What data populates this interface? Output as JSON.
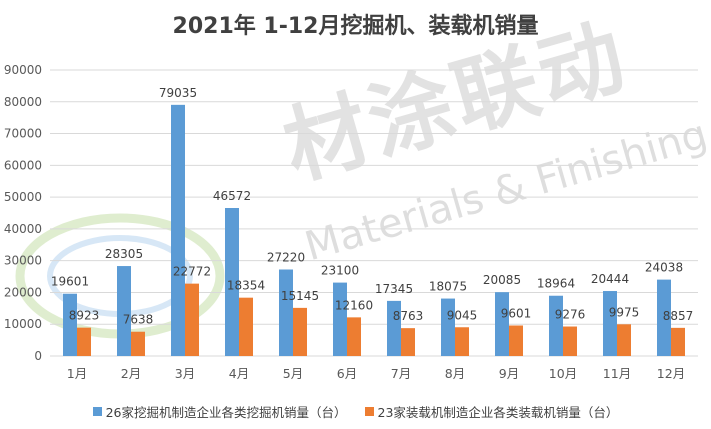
{
  "colors": {
    "series1": "#5b9bd5",
    "series2": "#ed7d31",
    "grid": "#d9d9d9",
    "text": "#595959"
  },
  "watermark": {
    "cn": "材涂联动",
    "en": "Materials & Finishing"
  },
  "chart_data": {
    "type": "bar",
    "title": "2021年 1-12月挖掘机、装载机销量",
    "categories": [
      "1月",
      "2月",
      "3月",
      "4月",
      "5月",
      "6月",
      "7月",
      "8月",
      "9月",
      "10月",
      "11月",
      "12月"
    ],
    "series": [
      {
        "name": "26家挖掘机制造企业各类挖掘机销量（台）",
        "values": [
          19601,
          28305,
          79035,
          46572,
          27220,
          23100,
          17345,
          18075,
          20085,
          18964,
          20444,
          24038
        ]
      },
      {
        "name": "23家装载机制造企业各类装载机销量（台）",
        "values": [
          8923,
          7638,
          22772,
          18354,
          15145,
          12160,
          8763,
          9045,
          9601,
          9276,
          9975,
          8857
        ]
      }
    ],
    "ylim": [
      0,
      90000
    ],
    "yticks": [
      0,
      10000,
      20000,
      30000,
      40000,
      50000,
      60000,
      70000,
      80000,
      90000
    ],
    "grid": true,
    "legend": "bottom"
  }
}
